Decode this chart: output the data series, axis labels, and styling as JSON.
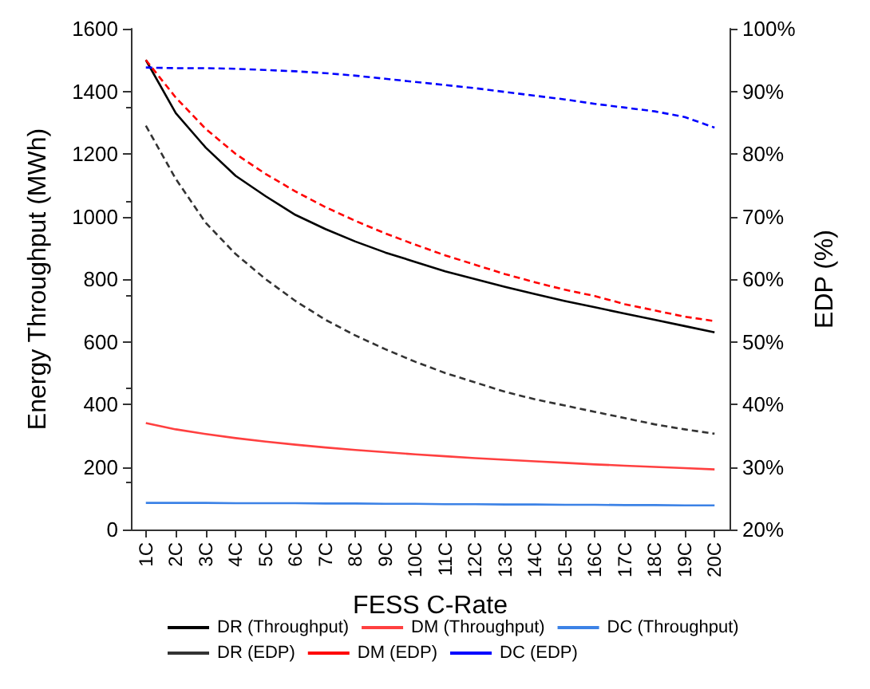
{
  "chart_data": {
    "type": "line",
    "xlabel": "FESS C-Rate",
    "ylabel": "Energy Throughput (MWh)",
    "y2label": "EDP (%)",
    "categories": [
      "1C",
      "2C",
      "3C",
      "4C",
      "5C",
      "6C",
      "7C",
      "8C",
      "9C",
      "10C",
      "11C",
      "12C",
      "13C",
      "14C",
      "15C",
      "16C",
      "17C",
      "18C",
      "19C",
      "20C"
    ],
    "ylim": [
      0,
      1600
    ],
    "yticks": [
      0,
      200,
      400,
      600,
      800,
      1000,
      1200,
      1400,
      1600
    ],
    "y2lim": [
      20,
      100
    ],
    "y2ticks": [
      {
        "value": 20,
        "label": "20%"
      },
      {
        "value": 30,
        "label": "30%"
      },
      {
        "value": 40,
        "label": "40%"
      },
      {
        "value": 50,
        "label": "50%"
      },
      {
        "value": 60,
        "label": "60%"
      },
      {
        "value": 70,
        "label": "70%"
      },
      {
        "value": 80,
        "label": "80%"
      },
      {
        "value": 90,
        "label": "90%"
      },
      {
        "value": 100,
        "label": "100%"
      }
    ],
    "grid": false,
    "legend": "bottom",
    "marker": "none",
    "series": [
      {
        "name": "DR (Throughput)",
        "color": "#000000",
        "line_style": "solid",
        "values": [
          1500,
          1330,
          1220,
          1130,
          1065,
          1005,
          960,
          920,
          885,
          855,
          825,
          800,
          775,
          752,
          730,
          710,
          690,
          670,
          650,
          630
        ]
      },
      {
        "name": "DM (Throughput)",
        "color": "#ff4040",
        "line_style": "solid",
        "values": [
          340,
          320,
          305,
          292,
          281,
          271,
          262,
          254,
          247,
          240,
          234,
          228,
          223,
          218,
          213,
          208,
          204,
          200,
          196,
          192
        ]
      },
      {
        "name": "DC (Throughput)",
        "color": "#3c82e6",
        "line_style": "solid",
        "values": [
          85,
          85,
          85,
          84,
          84,
          84,
          83,
          83,
          82,
          82,
          81,
          81,
          80,
          80,
          79,
          79,
          78,
          78,
          77,
          77
        ]
      },
      {
        "name": "DR (EDP)",
        "color": "#333333",
        "line_style": "dashed",
        "axis": "y2",
        "values": [
          84.5,
          76,
          69,
          64,
          60,
          56.5,
          53.5,
          51,
          48.8,
          46.8,
          45,
          43.5,
          42,
          40.8,
          39.8,
          38.8,
          37.8,
          36.8,
          36,
          35.3
        ]
      },
      {
        "name": "DM (EDP)",
        "color": "#ff0000",
        "line_style": "dashed",
        "axis": "y2",
        "values": [
          95,
          89,
          84,
          80,
          76.8,
          74,
          71.5,
          69.3,
          67.3,
          65.5,
          63.8,
          62.3,
          60.8,
          59.5,
          58.3,
          57.3,
          56,
          55,
          54,
          53.3
        ]
      },
      {
        "name": "DC (EDP)",
        "color": "#0000ff",
        "line_style": "dashed",
        "axis": "y2",
        "values": [
          93.8,
          93.7,
          93.7,
          93.6,
          93.4,
          93.2,
          92.9,
          92.5,
          92,
          91.5,
          91,
          90.5,
          89.9,
          89.3,
          88.7,
          88,
          87.4,
          86.8,
          85.9,
          84.2
        ]
      }
    ]
  }
}
